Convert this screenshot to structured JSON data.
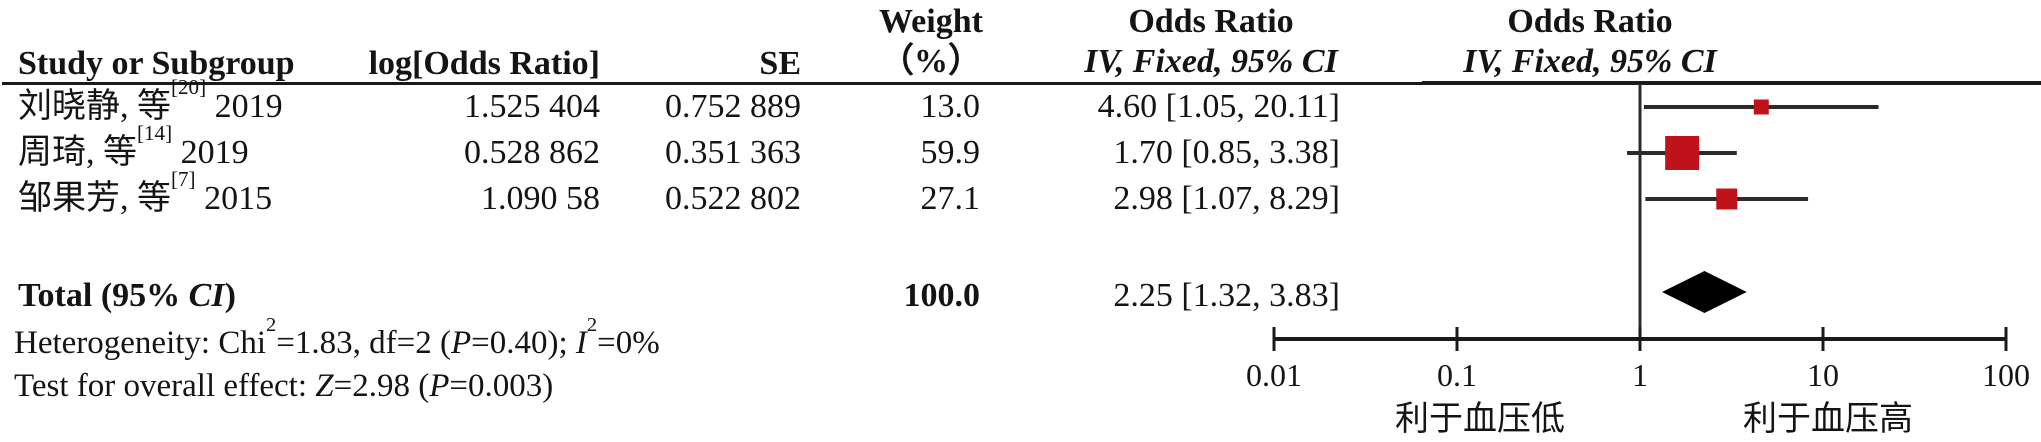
{
  "table": {
    "headers": {
      "study": "Study or Subgroup",
      "log_or": "log[Odds Ratio]",
      "se": "SE",
      "weight_line1": "Weight",
      "weight_line2": "（%）",
      "or_col_line1": "Odds Ratio",
      "or_col_line2": "IV, Fixed, 95% CI",
      "plot_col_line1": "Odds Ratio",
      "plot_col_line2": "IV, Fixed, 95% CI"
    },
    "rows": [
      {
        "study_segments": [
          {
            "t": "刘晓静, 等"
          },
          {
            "t": "[20]",
            "sup": true
          },
          {
            "t": " 2019"
          }
        ],
        "log_or": "1.525 404",
        "se": "0.752 889",
        "weight": "13.0",
        "or_ci": "4.60 [1.05, 20.11]"
      },
      {
        "study_segments": [
          {
            "t": "周琦, 等"
          },
          {
            "t": "[14]",
            "sup": true
          },
          {
            "t": " 2019"
          }
        ],
        "log_or": "0.528 862",
        "se": "0.351 363",
        "weight": "59.9",
        "or_ci": "1.70 [0.85, 3.38]"
      },
      {
        "study_segments": [
          {
            "t": "邹果芳, 等"
          },
          {
            "t": "[7]",
            "sup": true
          },
          {
            "t": " 2015"
          }
        ],
        "log_or": "1.090 58",
        "se": "0.522 802",
        "weight": "27.1",
        "or_ci": "2.98 [1.07, 8.29]"
      }
    ],
    "total": {
      "label_segments": [
        {
          "t": "Total (95% "
        },
        {
          "t": "CI",
          "i": true
        },
        {
          "t": ")"
        }
      ],
      "weight": "100.0",
      "or_ci": "2.25 [1.32, 3.83]"
    },
    "footnotes": {
      "heterogeneity_segments": [
        {
          "t": "Heterogeneity: Chi"
        },
        {
          "t": "2",
          "sup": true
        },
        {
          "t": "=1.83, df=2 ("
        },
        {
          "t": "P",
          "i": true
        },
        {
          "t": "=0.40); "
        },
        {
          "t": "I",
          "i": true
        },
        {
          "t": "2",
          "sup": true
        },
        {
          "t": "=0%"
        }
      ],
      "overall_effect_segments": [
        {
          "t": "Test for overall effect: "
        },
        {
          "t": "Z",
          "i": true
        },
        {
          "t": "=2.98 ("
        },
        {
          "t": "P",
          "i": true
        },
        {
          "t": "=0.003)"
        }
      ]
    }
  },
  "chart_data": {
    "type": "scatter",
    "subtype": "forest-plot",
    "effect_measure": "Odds Ratio",
    "model": "IV, Fixed, 95% CI",
    "x_axis": {
      "scale": "log10",
      "range": [
        0.01,
        100
      ],
      "ticks": [
        0.01,
        0.1,
        1,
        10,
        100
      ],
      "tick_labels": [
        "0.01",
        "0.1",
        "1",
        "10",
        "100"
      ]
    },
    "null_line": 1,
    "studies": [
      {
        "label": "刘晓静, 等[20] 2019",
        "or": 4.6,
        "ci_low": 1.05,
        "ci_high": 20.11,
        "weight_pct": 13.0
      },
      {
        "label": "周琦, 等[14] 2019",
        "or": 1.7,
        "ci_low": 0.85,
        "ci_high": 3.38,
        "weight_pct": 59.9
      },
      {
        "label": "邹果芳, 等[7] 2015",
        "or": 2.98,
        "ci_low": 1.07,
        "ci_high": 8.29,
        "weight_pct": 27.1
      }
    ],
    "total": {
      "or": 2.25,
      "ci_low": 1.32,
      "ci_high": 3.83,
      "weight_pct": 100.0
    },
    "heterogeneity": {
      "chi2": 1.83,
      "df": 2,
      "p": 0.4,
      "i2_pct": 0
    },
    "overall_effect": {
      "z": 2.98,
      "p": 0.003
    },
    "favors_left": "利于血压低",
    "favors_right": "利于血压高",
    "colors": {
      "marker": "#c0121a",
      "diamond": "#000000",
      "line": "#2b2b2b",
      "axis": "#1a1a1a"
    }
  }
}
